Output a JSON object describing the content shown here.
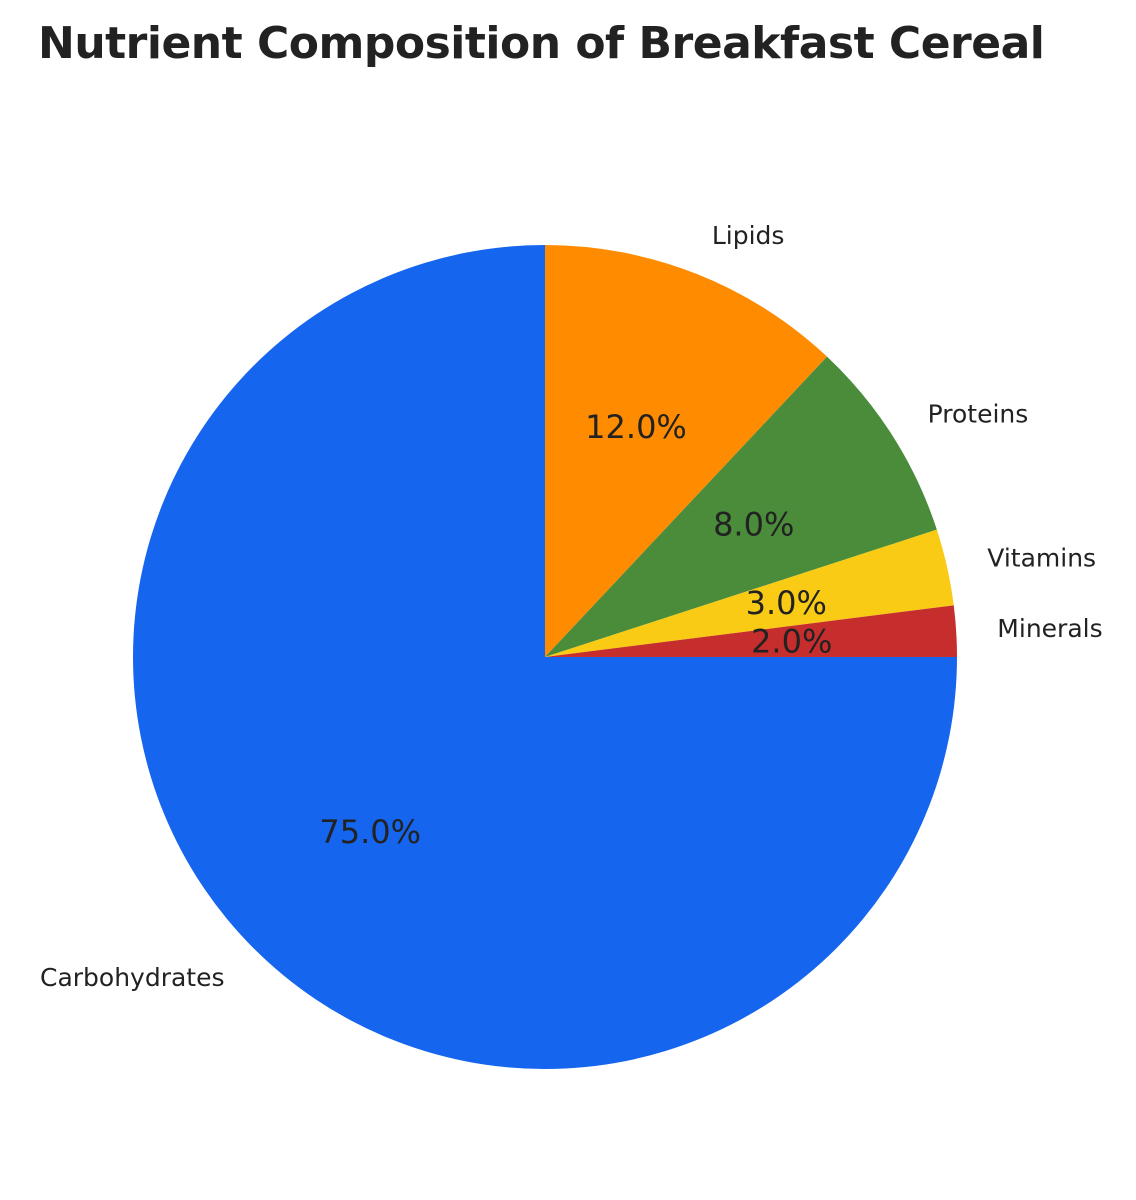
{
  "chart_data": {
    "type": "pie",
    "title": "Nutrient Composition of Breakfast Cereal",
    "labels": [
      "Carbohydrates",
      "Lipids",
      "Proteins",
      "Vitamins",
      "Minerals"
    ],
    "values": [
      75.0,
      12.0,
      8.0,
      3.0,
      2.0
    ],
    "percent_labels": [
      "75.0%",
      "12.0%",
      "8.0%",
      "3.0%",
      "2.0%"
    ],
    "colors": [
      "#1565EE",
      "#FF8C00",
      "#4A8C3A",
      "#F9CB14",
      "#C62E2E"
    ],
    "start_angle_deg": 0,
    "direction": "clockwise",
    "legend": "none"
  }
}
